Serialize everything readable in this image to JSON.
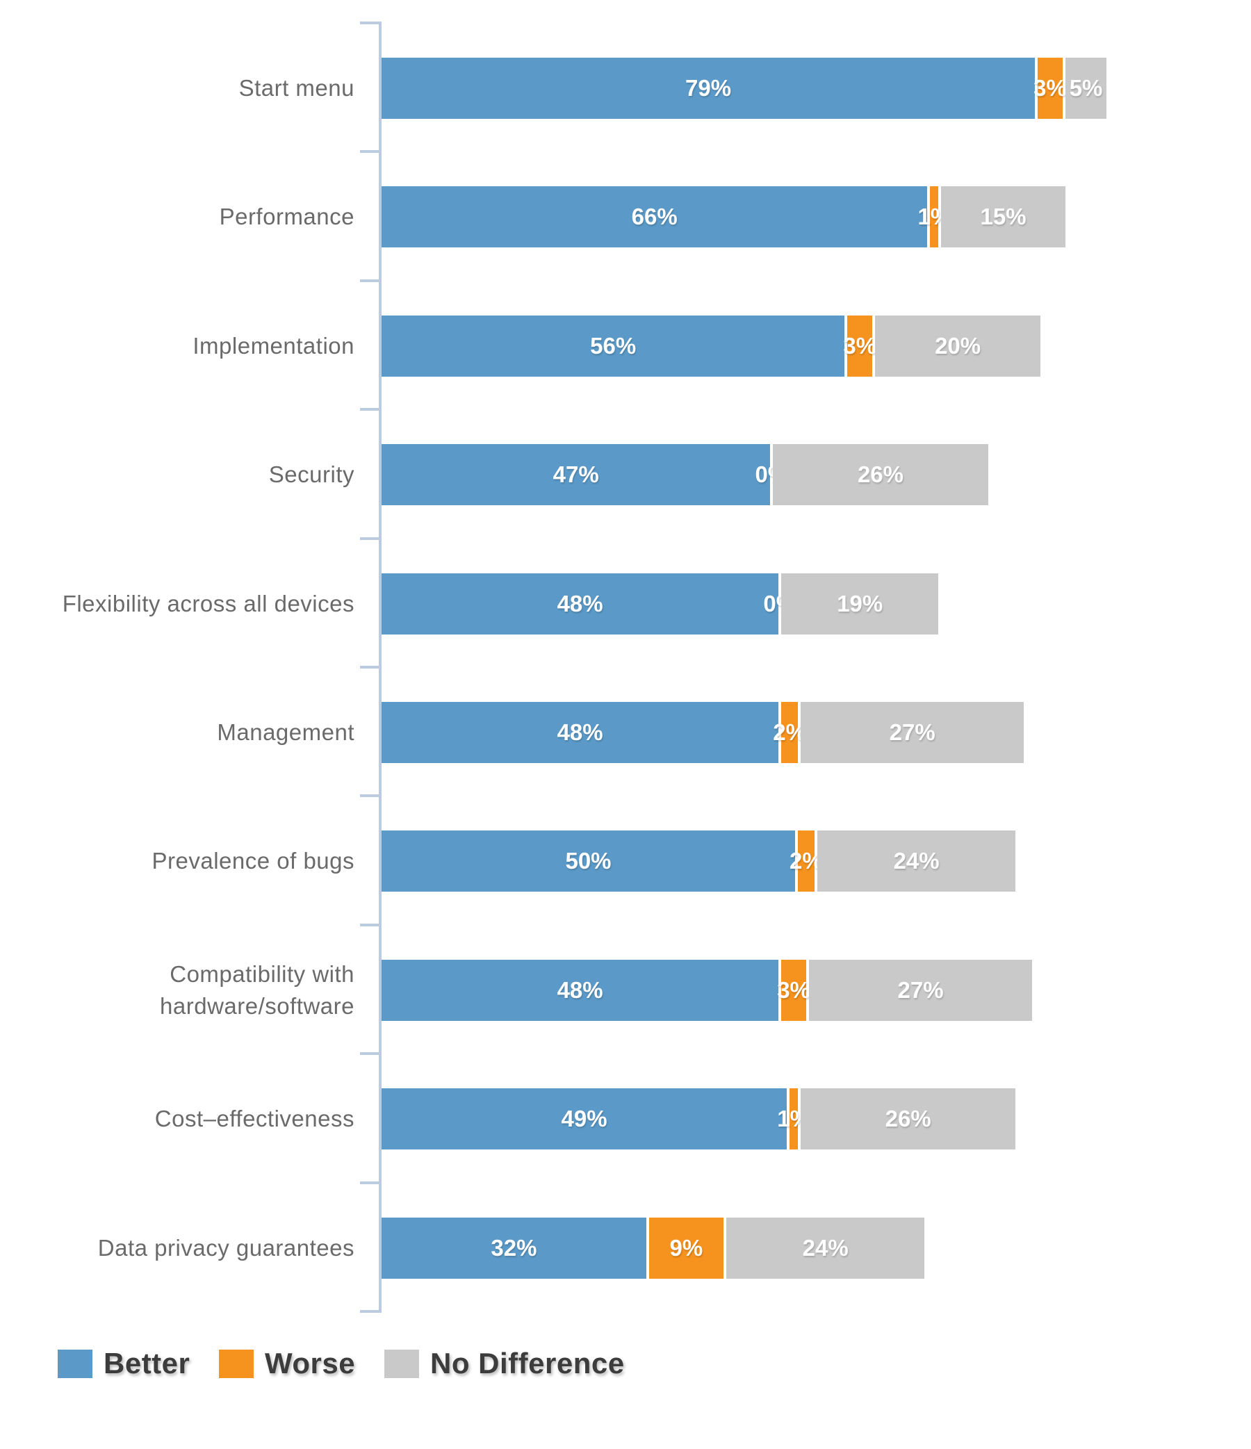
{
  "chart_data": {
    "type": "bar",
    "orientation": "horizontal",
    "stacked": true,
    "title": "",
    "xlabel": "",
    "ylabel": "",
    "xlim": [
      0,
      100
    ],
    "grid": false,
    "legend_position": "bottom",
    "axis_color": "#bccce0",
    "value_label_suffix": "%",
    "categories": [
      "Start menu",
      "Performance",
      "Implementation",
      "Security",
      "Flexibility across all devices",
      "Management",
      "Prevalence of bugs",
      "Compatibility with hardware/software",
      "Cost–effectiveness",
      "Data privacy guarantees"
    ],
    "series": [
      {
        "name": "Better",
        "color": "#5b9ac8",
        "values": [
          79,
          66,
          56,
          47,
          48,
          48,
          50,
          48,
          49,
          32
        ]
      },
      {
        "name": "Worse",
        "color": "#f6921e",
        "values": [
          3,
          1,
          3,
          0,
          0,
          2,
          2,
          3,
          1,
          9
        ]
      },
      {
        "name": "No Difference",
        "color": "#c9c9c9",
        "values": [
          5,
          15,
          20,
          26,
          19,
          27,
          24,
          27,
          26,
          24
        ]
      }
    ]
  },
  "legend": {
    "items": [
      {
        "label": "Better",
        "color": "#5b9ac8"
      },
      {
        "label": "Worse",
        "color": "#f6921e"
      },
      {
        "label": "No Difference",
        "color": "#c9c9c9"
      }
    ]
  }
}
